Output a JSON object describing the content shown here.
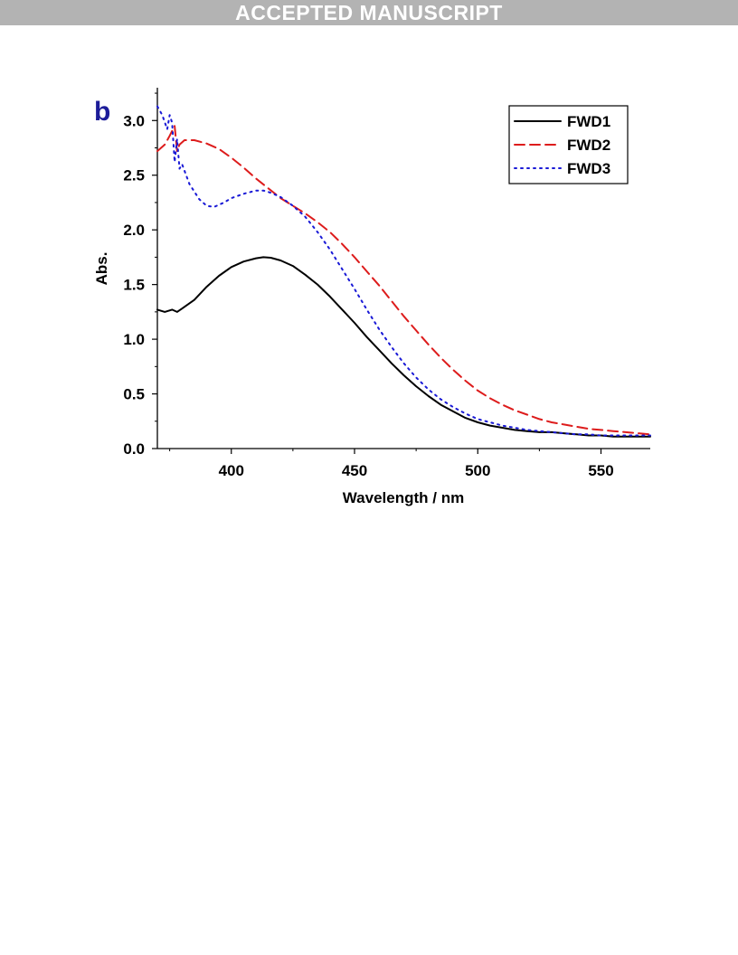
{
  "banner": {
    "text": "ACCEPTED MANUSCRIPT"
  },
  "chart_data": {
    "type": "line",
    "panel_label": "b",
    "xlabel": "Wavelength / nm",
    "ylabel": "Abs.",
    "xlim": [
      370,
      570
    ],
    "ylim": [
      0,
      3.3
    ],
    "x_ticks": [
      400,
      450,
      500,
      550
    ],
    "y_ticks": [
      0.0,
      0.5,
      1.0,
      1.5,
      2.0,
      2.5,
      3.0
    ],
    "x_tick_labels": [
      "400",
      "450",
      "500",
      "550"
    ],
    "y_tick_labels": [
      "0.0",
      "0.5",
      "1.0",
      "1.5",
      "2.0",
      "2.5",
      "3.0"
    ],
    "legend_position": "top-right",
    "colors": {
      "FWD1": "#000000",
      "FWD2": "#dd1c1c",
      "FWD3": "#1a1ad6",
      "panel_label": "#1c1c99"
    },
    "series": [
      {
        "name": "FWD1",
        "style": "solid",
        "x": [
          370,
          373,
          376,
          378,
          380,
          385,
          390,
          395,
          400,
          405,
          410,
          413,
          416,
          420,
          425,
          430,
          435,
          440,
          445,
          450,
          455,
          460,
          465,
          470,
          475,
          480,
          485,
          490,
          495,
          500,
          505,
          510,
          515,
          520,
          525,
          530,
          535,
          540,
          545,
          550,
          555,
          560,
          565,
          570
        ],
        "y": [
          1.27,
          1.25,
          1.27,
          1.25,
          1.28,
          1.36,
          1.48,
          1.58,
          1.66,
          1.71,
          1.74,
          1.75,
          1.745,
          1.72,
          1.67,
          1.59,
          1.5,
          1.39,
          1.27,
          1.15,
          1.02,
          0.9,
          0.78,
          0.67,
          0.57,
          0.48,
          0.4,
          0.34,
          0.28,
          0.24,
          0.21,
          0.19,
          0.17,
          0.16,
          0.15,
          0.15,
          0.14,
          0.13,
          0.12,
          0.12,
          0.11,
          0.11,
          0.11,
          0.11
        ]
      },
      {
        "name": "FWD2",
        "style": "dashed",
        "x": [
          370,
          373,
          375,
          377,
          378,
          379,
          381,
          385,
          390,
          395,
          400,
          405,
          410,
          415,
          420,
          425,
          430,
          435,
          440,
          445,
          450,
          455,
          460,
          465,
          470,
          475,
          480,
          485,
          490,
          495,
          500,
          505,
          510,
          515,
          520,
          525,
          530,
          535,
          540,
          545,
          550,
          555,
          560,
          565,
          570
        ],
        "y": [
          2.72,
          2.78,
          2.86,
          2.95,
          2.72,
          2.78,
          2.82,
          2.82,
          2.79,
          2.74,
          2.66,
          2.57,
          2.47,
          2.38,
          2.29,
          2.22,
          2.15,
          2.07,
          1.98,
          1.87,
          1.75,
          1.62,
          1.49,
          1.35,
          1.21,
          1.08,
          0.95,
          0.83,
          0.72,
          0.62,
          0.53,
          0.46,
          0.4,
          0.35,
          0.31,
          0.27,
          0.24,
          0.22,
          0.2,
          0.18,
          0.17,
          0.16,
          0.15,
          0.14,
          0.13
        ]
      },
      {
        "name": "FWD3",
        "style": "dotted",
        "x": [
          370,
          372,
          374,
          375,
          376,
          377,
          378,
          379,
          380,
          383,
          387,
          390,
          393,
          397,
          400,
          405,
          410,
          413,
          416,
          420,
          425,
          430,
          435,
          440,
          445,
          450,
          455,
          460,
          465,
          470,
          475,
          480,
          485,
          490,
          495,
          500,
          505,
          510,
          515,
          520,
          525,
          530,
          535,
          540,
          545,
          550,
          555,
          560,
          565,
          570
        ],
        "y": [
          3.13,
          3.05,
          2.92,
          3.05,
          2.98,
          2.62,
          2.83,
          2.56,
          2.6,
          2.42,
          2.28,
          2.22,
          2.21,
          2.25,
          2.29,
          2.33,
          2.36,
          2.36,
          2.34,
          2.3,
          2.22,
          2.12,
          1.98,
          1.82,
          1.64,
          1.46,
          1.27,
          1.09,
          0.93,
          0.78,
          0.65,
          0.54,
          0.45,
          0.38,
          0.32,
          0.27,
          0.24,
          0.21,
          0.19,
          0.17,
          0.16,
          0.15,
          0.14,
          0.13,
          0.13,
          0.12,
          0.12,
          0.12,
          0.12,
          0.12
        ]
      }
    ]
  }
}
